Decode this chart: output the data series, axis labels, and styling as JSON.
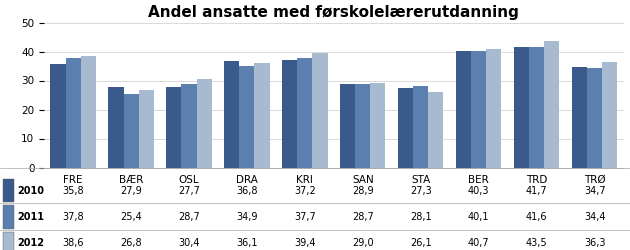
{
  "title": "Andel ansatte med førskolelærerutdanning",
  "categories": [
    "FRE",
    "BÆR",
    "OSL",
    "DRA",
    "KRI",
    "SAN",
    "STA",
    "BER",
    "TRD",
    "TRØ"
  ],
  "series": {
    "2010": [
      35.8,
      27.9,
      27.7,
      36.8,
      37.2,
      28.9,
      27.3,
      40.3,
      41.7,
      34.7
    ],
    "2011": [
      37.8,
      25.4,
      28.7,
      34.9,
      37.7,
      28.7,
      28.1,
      40.1,
      41.6,
      34.4
    ],
    "2012": [
      38.6,
      26.8,
      30.4,
      36.1,
      39.4,
      29.0,
      26.1,
      40.7,
      43.5,
      36.3
    ]
  },
  "colors": {
    "2010": "#3A5A8C",
    "2011": "#5B7FAF",
    "2012": "#A8BAD0"
  },
  "ylim": [
    0,
    50
  ],
  "yticks": [
    0,
    10,
    20,
    30,
    40,
    50
  ],
  "bar_width": 0.26,
  "years": [
    "2010",
    "2011",
    "2012"
  ],
  "background_color": "#FFFFFF",
  "grid_color": "#CCCCCC",
  "title_fontsize": 11,
  "tick_fontsize": 7.5,
  "table_fontsize": 7
}
